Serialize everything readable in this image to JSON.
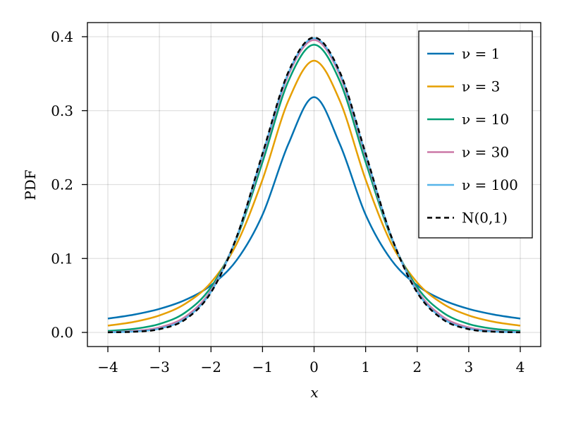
{
  "chart_data": {
    "type": "line",
    "title": "",
    "xlabel": "x",
    "ylabel": "PDF",
    "xlim": [
      -4.4,
      4.4
    ],
    "ylim": [
      -0.02,
      0.419
    ],
    "grid": true,
    "legend_position": "top-right",
    "x_ticks": [
      -4,
      -3,
      -2,
      -1,
      0,
      1,
      2,
      3,
      4
    ],
    "x_tick_labels": [
      "−4",
      "−3",
      "−2",
      "−1",
      "0",
      "1",
      "2",
      "3",
      "4"
    ],
    "y_ticks": [
      0.0,
      0.1,
      0.2,
      0.3,
      0.4
    ],
    "y_tick_labels": [
      "0.0",
      "0.1",
      "0.2",
      "0.3",
      "0.4"
    ],
    "x": [
      -4,
      -3.5,
      -3,
      -2.5,
      -2,
      -1.5,
      -1,
      -0.5,
      0,
      0.5,
      1,
      1.5,
      2,
      2.5,
      3,
      3.5,
      4
    ],
    "series": [
      {
        "name": "ν = 1",
        "color": "#0072b2",
        "dashed": false,
        "values": [
          0.0187,
          0.024,
          0.0318,
          0.0439,
          0.0637,
          0.0979,
          0.1592,
          0.2546,
          0.3183,
          0.2546,
          0.1592,
          0.0979,
          0.0637,
          0.0439,
          0.0318,
          0.024,
          0.0187
        ]
      },
      {
        "name": "ν = 3",
        "color": "#e69f00",
        "dashed": false,
        "values": [
          0.0092,
          0.0142,
          0.023,
          0.0387,
          0.0675,
          0.12,
          0.2067,
          0.3132,
          0.3676,
          0.3132,
          0.2067,
          0.12,
          0.0675,
          0.0387,
          0.023,
          0.0142,
          0.0092
        ]
      },
      {
        "name": "ν = 10",
        "color": "#009e73",
        "dashed": false,
        "values": [
          0.002,
          0.0048,
          0.0114,
          0.0269,
          0.0611,
          0.1275,
          0.2304,
          0.3397,
          0.3891,
          0.3397,
          0.2304,
          0.1275,
          0.0611,
          0.0269,
          0.0114,
          0.0048,
          0.002
        ]
      },
      {
        "name": "ν = 30",
        "color": "#cc79a7",
        "dashed": false,
        "values": [
          0.0005,
          0.002,
          0.0068,
          0.0211,
          0.0569,
          0.129,
          0.238,
          0.3479,
          0.3956,
          0.3479,
          0.238,
          0.129,
          0.0569,
          0.0211,
          0.0068,
          0.002,
          0.0005
        ]
      },
      {
        "name": "ν = 100",
        "color": "#56b4e9",
        "dashed": false,
        "values": [
          0.0002,
          0.0012,
          0.0051,
          0.0186,
          0.0549,
          0.1294,
          0.2408,
          0.3508,
          0.398,
          0.3508,
          0.2408,
          0.1294,
          0.0549,
          0.0186,
          0.0051,
          0.0012,
          0.0002
        ]
      },
      {
        "name": "N(0,1)",
        "color": "#000000",
        "dashed": true,
        "values": [
          0.0001,
          0.0009,
          0.0044,
          0.0175,
          0.054,
          0.1295,
          0.242,
          0.3521,
          0.3989,
          0.3521,
          0.242,
          0.1295,
          0.054,
          0.0175,
          0.0044,
          0.0009,
          0.0001
        ]
      }
    ]
  }
}
